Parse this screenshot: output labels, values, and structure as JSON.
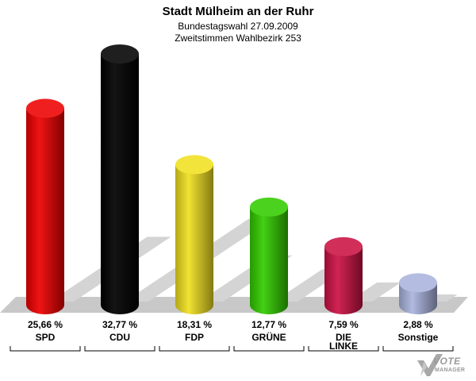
{
  "header": {
    "title": "Stadt Mülheim an der Ruhr",
    "subtitle1": "Bundestagswahl 27.09.2009",
    "subtitle2": "Zweitstimmen Wahlbezirk 253"
  },
  "logo": {
    "line1": "VOTE",
    "line2": "MANAGER",
    "icon": "checkmark-x-icon"
  },
  "chart_data": {
    "type": "bar",
    "title": "Stadt Mülheim an der Ruhr",
    "subtitle": "Bundestagswahl 27.09.2009 / Zweitstimmen Wahlbezirk 253",
    "categories": [
      "SPD",
      "CDU",
      "FDP",
      "GRÜNE",
      "DIE LINKE",
      "Sonstige"
    ],
    "category_lines": [
      [
        "SPD"
      ],
      [
        "CDU"
      ],
      [
        "FDP"
      ],
      [
        "GRÜNE"
      ],
      [
        "DIE",
        "LINKE"
      ],
      [
        "Sonstige"
      ]
    ],
    "values": [
      25.66,
      32.77,
      18.31,
      12.77,
      7.59,
      2.88
    ],
    "value_labels": [
      "25,66 %",
      "32,77 %",
      "18,31 %",
      "12,77 %",
      "7,59 %",
      "2,88 %"
    ],
    "colors": [
      "#ee0000",
      "#000000",
      "#f0e020",
      "#33cc00",
      "#cc1144",
      "#aab4dd"
    ],
    "unit": "%",
    "ylim": [
      0,
      32.77
    ],
    "grid": false,
    "legend": "none"
  }
}
